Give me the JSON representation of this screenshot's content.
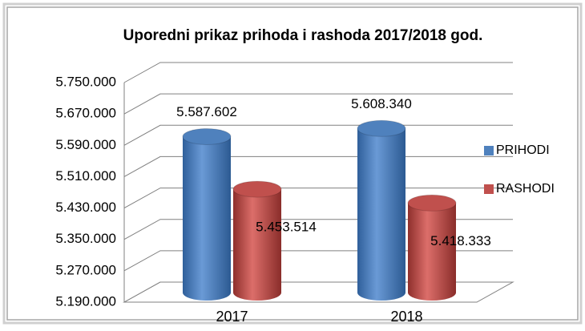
{
  "chart_data": {
    "type": "bar3d",
    "title": "Uporedni prikaz prihoda i rashoda 2017/2018 god.",
    "categories": [
      "2017",
      "2018"
    ],
    "series": [
      {
        "name": "PRIHODI",
        "color": "#4f81bd",
        "values": [
          5587602,
          5608340
        ],
        "value_labels": [
          "5.587.602",
          "5.608.340"
        ]
      },
      {
        "name": "RASHODI",
        "color": "#c0504d",
        "values": [
          5453514,
          5418333
        ],
        "value_labels": [
          "5.453.514",
          "5.418.333"
        ]
      }
    ],
    "ylim": [
      5190000,
      5750000
    ],
    "yticks": [
      {
        "value": 5190000,
        "label": "5.190.000"
      },
      {
        "value": 5270000,
        "label": "5.270.000"
      },
      {
        "value": 5350000,
        "label": "5.350.000"
      },
      {
        "value": 5430000,
        "label": "5.430.000"
      },
      {
        "value": 5510000,
        "label": "5.510.000"
      },
      {
        "value": 5590000,
        "label": "5.590.000"
      },
      {
        "value": 5670000,
        "label": "5.670.000"
      },
      {
        "value": 5750000,
        "label": "5.750.000"
      }
    ],
    "grid": true,
    "legend": "right"
  }
}
